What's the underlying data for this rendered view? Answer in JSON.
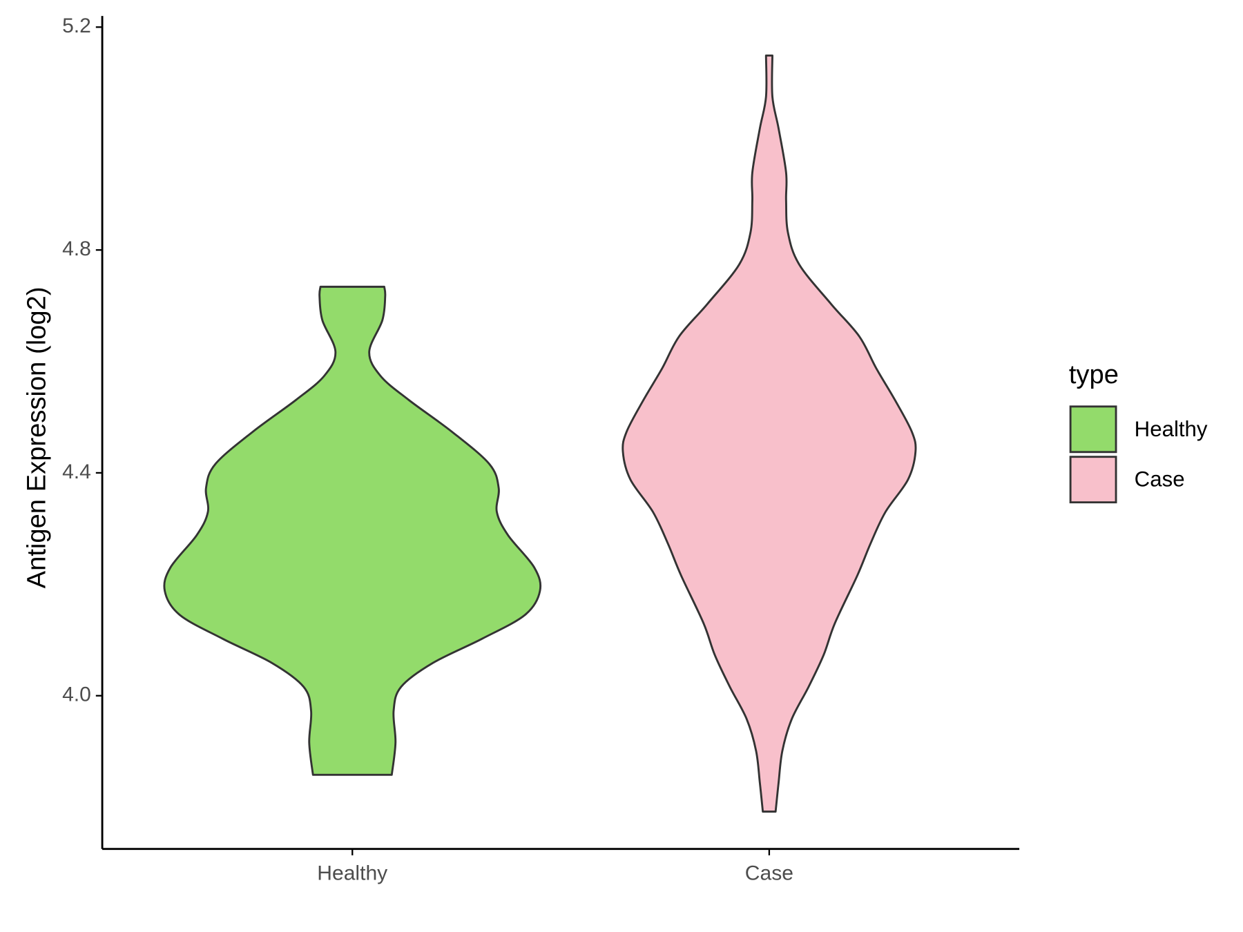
{
  "chart_data": {
    "type": "violin",
    "y_label": "Antigen Expression (log2)",
    "categories": [
      "Healthy",
      "Case"
    ],
    "legend_title": "type",
    "legend_position": "right",
    "ylim": [
      3.725,
      5.22
    ],
    "yticks": [
      {
        "value": 4,
        "label": "4.0"
      },
      4.4,
      4.8,
      5.2
    ],
    "series": [
      {
        "name": "Healthy",
        "color": "#93db6b",
        "y": [
          4.734,
          4.717,
          4.674,
          4.617,
          4.574,
          4.531,
          4.474,
          4.416,
          4.373,
          4.33,
          4.288,
          4.23,
          4.188,
          4.145,
          4.102,
          4.059,
          4.016,
          3.973,
          3.916,
          3.858
        ],
        "width": [
          0.17,
          0.175,
          0.16,
          0.09,
          0.15,
          0.3,
          0.53,
          0.73,
          0.78,
          0.77,
          0.83,
          0.97,
          1.0,
          0.92,
          0.69,
          0.43,
          0.26,
          0.22,
          0.23,
          0.21
        ]
      },
      {
        "name": "Case",
        "color": "#f8c0cb",
        "y": [
          5.149,
          5.075,
          5.018,
          4.939,
          4.889,
          4.831,
          4.774,
          4.703,
          4.645,
          4.588,
          4.531,
          4.474,
          4.438,
          4.388,
          4.33,
          4.273,
          4.216,
          4.13,
          4.073,
          4.016,
          3.958,
          3.901,
          3.844,
          3.792
        ],
        "width": [
          0.017,
          0.017,
          0.05,
          0.09,
          0.09,
          0.1,
          0.16,
          0.33,
          0.48,
          0.57,
          0.67,
          0.76,
          0.78,
          0.74,
          0.62,
          0.54,
          0.47,
          0.35,
          0.29,
          0.21,
          0.12,
          0.07,
          0.05,
          0.034
        ]
      }
    ]
  }
}
